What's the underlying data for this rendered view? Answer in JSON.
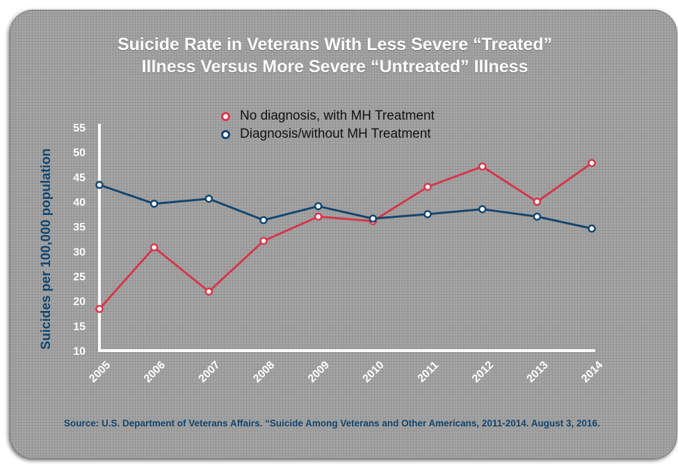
{
  "title_lines": [
    "Suicide Rate in Veterans With Less Severe “Treated”",
    "Illness Versus More Severe “Untreated” Illness"
  ],
  "source_note": "Source: U.S. Department of Veterans Affairs. “Suicide Among Veterans and Other Americans, 2011-2014. August 3, 2016.",
  "colors": {
    "treated": "#d6364a",
    "untreated": "#12456e",
    "axis": "#ffffff",
    "tick_label": "#ffffff",
    "ylabel": "#12456e"
  },
  "chart_data": {
    "type": "line",
    "title": "Suicide Rate in Veterans With Less Severe “Treated” Illness Versus More Severe “Untreated” Illness",
    "xlabel": "",
    "ylabel": "Suicides per 100,000 population",
    "x": [
      "2005",
      "2006",
      "2007",
      "2008",
      "2009",
      "2010",
      "2011",
      "2012",
      "2013",
      "2014"
    ],
    "ylim": [
      10,
      55
    ],
    "yticks": [
      10,
      15,
      20,
      25,
      30,
      35,
      40,
      45,
      50,
      55
    ],
    "grid": false,
    "legend_position": "top-center",
    "series": [
      {
        "name": "No diagnosis, with MH Treatment",
        "color": "#d6364a",
        "values": [
          18.4,
          30.8,
          21.9,
          32.1,
          37.0,
          36.1,
          43.0,
          47.1,
          40.0,
          47.8
        ]
      },
      {
        "name": "Diagnosis/without MH Treatment",
        "color": "#12456e",
        "values": [
          43.4,
          39.6,
          40.6,
          36.3,
          39.1,
          36.6,
          37.5,
          38.5,
          37.0,
          34.6
        ]
      }
    ]
  }
}
